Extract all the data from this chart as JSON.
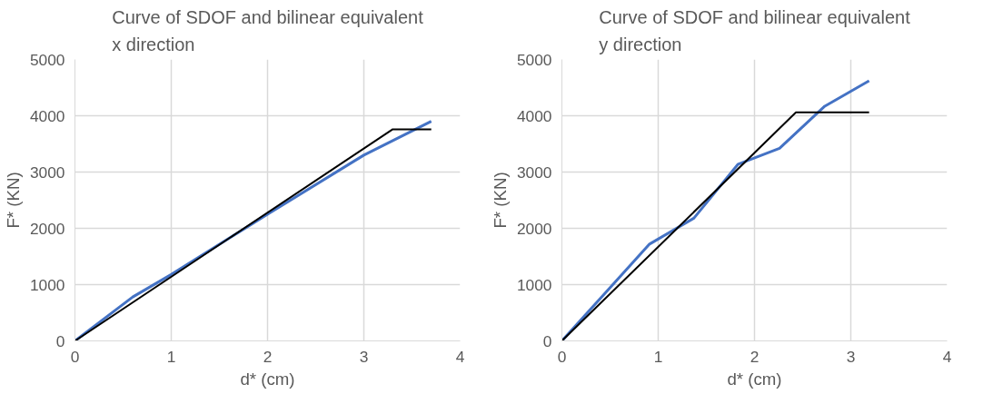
{
  "chart_data": [
    {
      "type": "line",
      "title": "Curve of SDOF and bilinear equivalent\nx direction",
      "xlabel": "d* (cm)",
      "ylabel": "F* (KN)",
      "xlim": [
        0,
        4
      ],
      "ylim": [
        0,
        5000
      ],
      "xticks": [
        0,
        1,
        2,
        3,
        4
      ],
      "yticks": [
        0,
        1000,
        2000,
        3000,
        4000,
        5000
      ],
      "grid": true,
      "series": [
        {
          "color": "#4472c4",
          "x": [
            0,
            0.6,
            1.0,
            2.0,
            3.0,
            3.7
          ],
          "values": [
            0,
            780,
            1180,
            2250,
            3300,
            3900
          ]
        },
        {
          "color": "#000000",
          "x": [
            0,
            3.3,
            3.7
          ],
          "values": [
            0,
            3760,
            3760
          ]
        }
      ]
    },
    {
      "type": "line",
      "title": "Curve of SDOF and bilinear equivalent\ny direction",
      "xlabel": "d* (cm)",
      "ylabel": "F* (KN)",
      "xlim": [
        0,
        4
      ],
      "ylim": [
        0,
        5000
      ],
      "xticks": [
        0,
        1,
        2,
        3,
        4
      ],
      "yticks": [
        0,
        1000,
        2000,
        3000,
        4000,
        5000
      ],
      "grid": true,
      "series": [
        {
          "color": "#4472c4",
          "x": [
            0,
            0.45,
            0.91,
            1.37,
            1.83,
            2.26,
            2.73,
            3.19
          ],
          "values": [
            0,
            850,
            1720,
            2180,
            3140,
            3420,
            4170,
            4620
          ]
        },
        {
          "color": "#000000",
          "x": [
            0,
            2.43,
            3.19
          ],
          "values": [
            0,
            4060,
            4060
          ]
        }
      ]
    }
  ]
}
